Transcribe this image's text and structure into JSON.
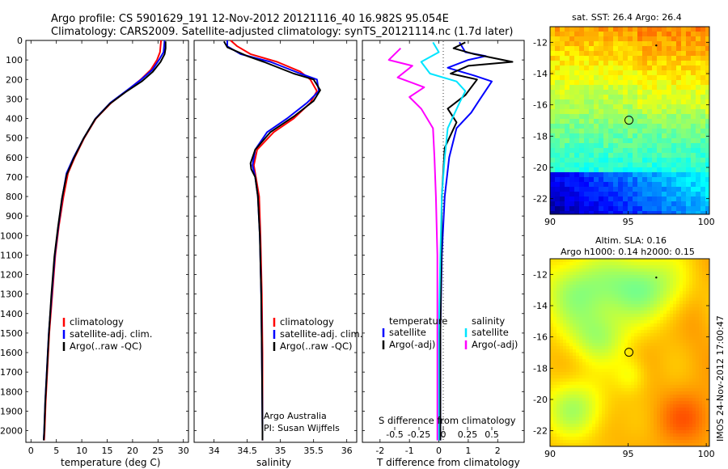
{
  "header": {
    "title_line1": "Argo profile: CS 5901629_191 12-Nov-2012 20121116_40 16.982S 95.054E",
    "title_line2": "Climatology: CARS2009. Satellite-adjusted climatology: synTS_20121114.nc (1.7d later)"
  },
  "colors": {
    "climatology": "#ff0000",
    "satellite": "#0000ff",
    "argo": "#000000",
    "sat_salinity": "#00e5ff",
    "argo_salinity": "#ff00ff"
  },
  "chart_data": [
    {
      "type": "line",
      "id": "temperature",
      "xlabel": "temperature (deg C)",
      "ylabel": "",
      "xlim": [
        -1,
        31
      ],
      "ylim": [
        2060,
        0
      ],
      "xticks": [
        0,
        5,
        10,
        15,
        20,
        25,
        30
      ],
      "yticks": [
        0,
        100,
        200,
        300,
        400,
        500,
        600,
        700,
        800,
        900,
        1000,
        1100,
        1200,
        1300,
        1400,
        1500,
        1600,
        1700,
        1800,
        1900,
        2000
      ],
      "legend": [
        "climatology",
        "satellite-adj. clim.",
        "Argo(..raw -QC)"
      ],
      "series": [
        {
          "name": "climatology",
          "color": "#ff0000",
          "points": [
            [
              25.6,
              0
            ],
            [
              25.4,
              60
            ],
            [
              24.8,
              100
            ],
            [
              23.6,
              150
            ],
            [
              21.6,
              200
            ],
            [
              18.8,
              260
            ],
            [
              15.8,
              320
            ],
            [
              12.8,
              400
            ],
            [
              10.5,
              500
            ],
            [
              8.6,
              600
            ],
            [
              7.3,
              680
            ],
            [
              6.4,
              800
            ],
            [
              5.5,
              950
            ],
            [
              4.8,
              1100
            ],
            [
              4.2,
              1300
            ],
            [
              3.6,
              1500
            ],
            [
              3.2,
              1700
            ],
            [
              2.9,
              1850
            ],
            [
              2.7,
              2000
            ],
            [
              2.6,
              2050
            ]
          ]
        },
        {
          "name": "satellite-adj. clim.",
          "color": "#0000ff",
          "points": [
            [
              26.3,
              0
            ],
            [
              26.1,
              60
            ],
            [
              25.2,
              100
            ],
            [
              23.9,
              150
            ],
            [
              21.7,
              200
            ],
            [
              18.7,
              260
            ],
            [
              15.6,
              320
            ],
            [
              12.7,
              400
            ],
            [
              10.4,
              500
            ],
            [
              8.4,
              600
            ],
            [
              7.0,
              680
            ],
            [
              6.2,
              800
            ],
            [
              5.4,
              950
            ],
            [
              4.7,
              1100
            ],
            [
              4.1,
              1300
            ],
            [
              3.5,
              1500
            ],
            [
              3.1,
              1700
            ],
            [
              2.8,
              1850
            ],
            [
              2.6,
              2000
            ],
            [
              2.5,
              2050
            ]
          ]
        },
        {
          "name": "Argo(..raw -QC)",
          "color": "#000000",
          "points": [
            [
              26.5,
              5
            ],
            [
              26.5,
              40
            ],
            [
              26.3,
              70
            ],
            [
              25.5,
              110
            ],
            [
              24.0,
              160
            ],
            [
              21.8,
              210
            ],
            [
              18.6,
              265
            ],
            [
              15.5,
              325
            ],
            [
              12.6,
              405
            ],
            [
              10.3,
              505
            ],
            [
              8.4,
              605
            ],
            [
              7.0,
              690
            ],
            [
              6.1,
              810
            ],
            [
              5.3,
              960
            ],
            [
              4.6,
              1110
            ],
            [
              4.0,
              1310
            ],
            [
              3.5,
              1510
            ],
            [
              3.1,
              1710
            ],
            [
              2.8,
              1860
            ],
            [
              2.6,
              2010
            ],
            [
              2.5,
              2050
            ]
          ]
        }
      ]
    },
    {
      "type": "line",
      "id": "salinity",
      "xlabel": "salinity",
      "xlim": [
        33.7,
        36.15
      ],
      "ylim": [
        2060,
        0
      ],
      "xticks": [
        34,
        34.5,
        35,
        35.5,
        36
      ],
      "legend": [
        "climatology",
        "satellite-adj. clim.",
        "Argo(..raw -QC)"
      ],
      "note_line1": "Argo Australia",
      "note_line2": "PI: Susan Wijffels",
      "series": [
        {
          "name": "climatology",
          "color": "#ff0000",
          "points": [
            [
              34.25,
              0
            ],
            [
              34.35,
              30
            ],
            [
              34.55,
              70
            ],
            [
              34.95,
              110
            ],
            [
              35.3,
              160
            ],
            [
              35.45,
              200
            ],
            [
              35.55,
              260
            ],
            [
              35.45,
              320
            ],
            [
              35.2,
              400
            ],
            [
              34.9,
              470
            ],
            [
              34.65,
              560
            ],
            [
              34.6,
              640
            ],
            [
              34.63,
              700
            ],
            [
              34.68,
              800
            ],
            [
              34.7,
              1000
            ],
            [
              34.72,
              1300
            ],
            [
              34.73,
              1600
            ],
            [
              34.73,
              2000
            ],
            [
              34.73,
              2050
            ]
          ]
        },
        {
          "name": "satellite-adj. clim.",
          "color": "#0000ff",
          "points": [
            [
              34.2,
              0
            ],
            [
              34.2,
              30
            ],
            [
              34.4,
              70
            ],
            [
              34.85,
              110
            ],
            [
              35.3,
              170
            ],
            [
              35.55,
              200
            ],
            [
              35.58,
              260
            ],
            [
              35.4,
              320
            ],
            [
              35.1,
              400
            ],
            [
              34.8,
              470
            ],
            [
              34.62,
              560
            ],
            [
              34.58,
              640
            ],
            [
              34.62,
              700
            ],
            [
              34.66,
              800
            ],
            [
              34.69,
              1000
            ],
            [
              34.71,
              1300
            ],
            [
              34.72,
              1600
            ],
            [
              34.73,
              2000
            ],
            [
              34.73,
              2050
            ]
          ]
        },
        {
          "name": "Argo(..raw -QC)",
          "color": "#000000",
          "points": [
            [
              34.15,
              5
            ],
            [
              34.2,
              35
            ],
            [
              34.5,
              80
            ],
            [
              34.75,
              110
            ],
            [
              35.2,
              170
            ],
            [
              35.5,
              200
            ],
            [
              35.6,
              255
            ],
            [
              35.5,
              310
            ],
            [
              35.2,
              390
            ],
            [
              34.85,
              470
            ],
            [
              34.62,
              560
            ],
            [
              34.55,
              630
            ],
            [
              34.56,
              660
            ],
            [
              34.62,
              700
            ],
            [
              34.66,
              800
            ],
            [
              34.69,
              1000
            ],
            [
              34.71,
              1300
            ],
            [
              34.72,
              1600
            ],
            [
              34.73,
              2000
            ],
            [
              34.73,
              2050
            ]
          ]
        }
      ]
    },
    {
      "type": "line",
      "id": "differences",
      "xlabel": "T difference from climatology",
      "top_axis_label": "S difference from climatology",
      "xlim": [
        -2.6,
        2.9
      ],
      "ylim": [
        2060,
        0
      ],
      "xticks": [
        -2,
        -1,
        0,
        1,
        2
      ],
      "top_tick_labels": [
        "-0.5",
        "-0.25",
        "0",
        "0.25",
        "0.5"
      ],
      "top_tick_values": [
        -0.5,
        -0.25,
        0,
        0.25,
        0.5
      ],
      "legend_titles": [
        "temperature",
        "salinity"
      ],
      "legend_left": [
        "satellite",
        "Argo(-adj)"
      ],
      "legend_right": [
        "satellite",
        "Argo(-adj)"
      ],
      "series": [
        {
          "name": "satellite",
          "group": "temperature",
          "color": "#0000ff",
          "points": [
            [
              0.7,
              10
            ],
            [
              0.9,
              60
            ],
            [
              1.6,
              80
            ],
            [
              1.0,
              100
            ],
            [
              0.3,
              140
            ],
            [
              1.2,
              180
            ],
            [
              1.8,
              210
            ],
            [
              1.4,
              300
            ],
            [
              1.1,
              370
            ],
            [
              0.6,
              450
            ],
            [
              0.35,
              600
            ],
            [
              0.2,
              800
            ],
            [
              0.1,
              1100
            ],
            [
              0.05,
              1500
            ],
            [
              0.05,
              2050
            ]
          ]
        },
        {
          "name": "Argo(-adj)",
          "group": "temperature",
          "color": "#000000",
          "points": [
            [
              0.9,
              10
            ],
            [
              0.5,
              40
            ],
            [
              1.2,
              70
            ],
            [
              2.5,
              110
            ],
            [
              1.0,
              130
            ],
            [
              0.4,
              170
            ],
            [
              1.3,
              200
            ],
            [
              0.9,
              280
            ],
            [
              0.3,
              350
            ],
            [
              0.6,
              420
            ],
            [
              0.2,
              550
            ],
            [
              0.1,
              800
            ],
            [
              0.08,
              1100
            ],
            [
              0.05,
              1500
            ],
            [
              0.05,
              2050
            ]
          ]
        },
        {
          "name": "satellite",
          "group": "salinity",
          "color": "#00e5ff",
          "points": [
            [
              -0.2,
              10
            ],
            [
              0.0,
              60
            ],
            [
              -0.6,
              110
            ],
            [
              -0.3,
              170
            ],
            [
              0.6,
              210
            ],
            [
              0.9,
              260
            ],
            [
              0.7,
              320
            ],
            [
              0.3,
              450
            ],
            [
              0.2,
              600
            ],
            [
              0.1,
              800
            ],
            [
              0.05,
              1100
            ],
            [
              0.0,
              1500
            ],
            [
              0.0,
              2050
            ]
          ]
        },
        {
          "name": "Argo(-adj)",
          "group": "salinity",
          "color": "#ff00ff",
          "points": [
            [
              -1.3,
              40
            ],
            [
              -1.7,
              100
            ],
            [
              -0.9,
              130
            ],
            [
              -1.4,
              190
            ],
            [
              -0.5,
              240
            ],
            [
              -1.0,
              290
            ],
            [
              -0.6,
              350
            ],
            [
              -0.2,
              450
            ],
            [
              -0.15,
              600
            ],
            [
              -0.1,
              800
            ],
            [
              -0.05,
              1100
            ],
            [
              -0.05,
              1500
            ],
            [
              -0.05,
              2050
            ]
          ]
        }
      ]
    },
    {
      "type": "heatmap",
      "id": "sst_map",
      "title": "sat. SST: 26.4  Argo: 26.4",
      "xlim": [
        90,
        100.2
      ],
      "ylim": [
        -23,
        -11
      ],
      "xticks": [
        90,
        95,
        100
      ],
      "yticks": [
        -12,
        -14,
        -16,
        -18,
        -20,
        -22
      ],
      "float_position": [
        95.05,
        -16.98
      ]
    },
    {
      "type": "heatmap",
      "id": "sla_map",
      "title_line1": "Altim. SLA: 0.16",
      "title_line2": "Argo h1000: 0.14  h2000: 0.15",
      "xlim": [
        90,
        100.2
      ],
      "ylim": [
        -23,
        -11
      ],
      "xticks": [
        90,
        95,
        100
      ],
      "yticks": [
        -12,
        -14,
        -16,
        -18,
        -20,
        -22
      ],
      "float_position": [
        95.05,
        -16.98
      ]
    }
  ],
  "side_stamp": "IMOS 24-Nov-2012 17:00:47"
}
